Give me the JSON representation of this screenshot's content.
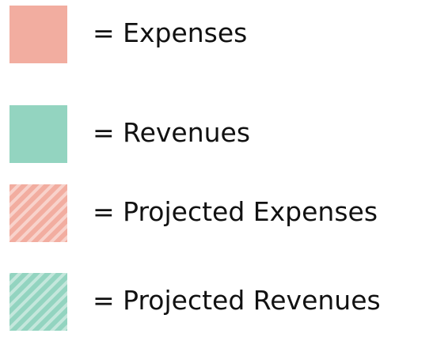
{
  "legend": {
    "items": [
      {
        "label": "= Expenses",
        "color": "#f2ada0",
        "pattern": "solid"
      },
      {
        "label": "= Revenues",
        "color": "#93d4c0",
        "pattern": "solid"
      },
      {
        "label": "= Projected Expenses",
        "color": "#f2ada0",
        "pattern": "striped"
      },
      {
        "label": "= Projected Revenues",
        "color": "#93d4c0",
        "pattern": "striped"
      }
    ]
  }
}
